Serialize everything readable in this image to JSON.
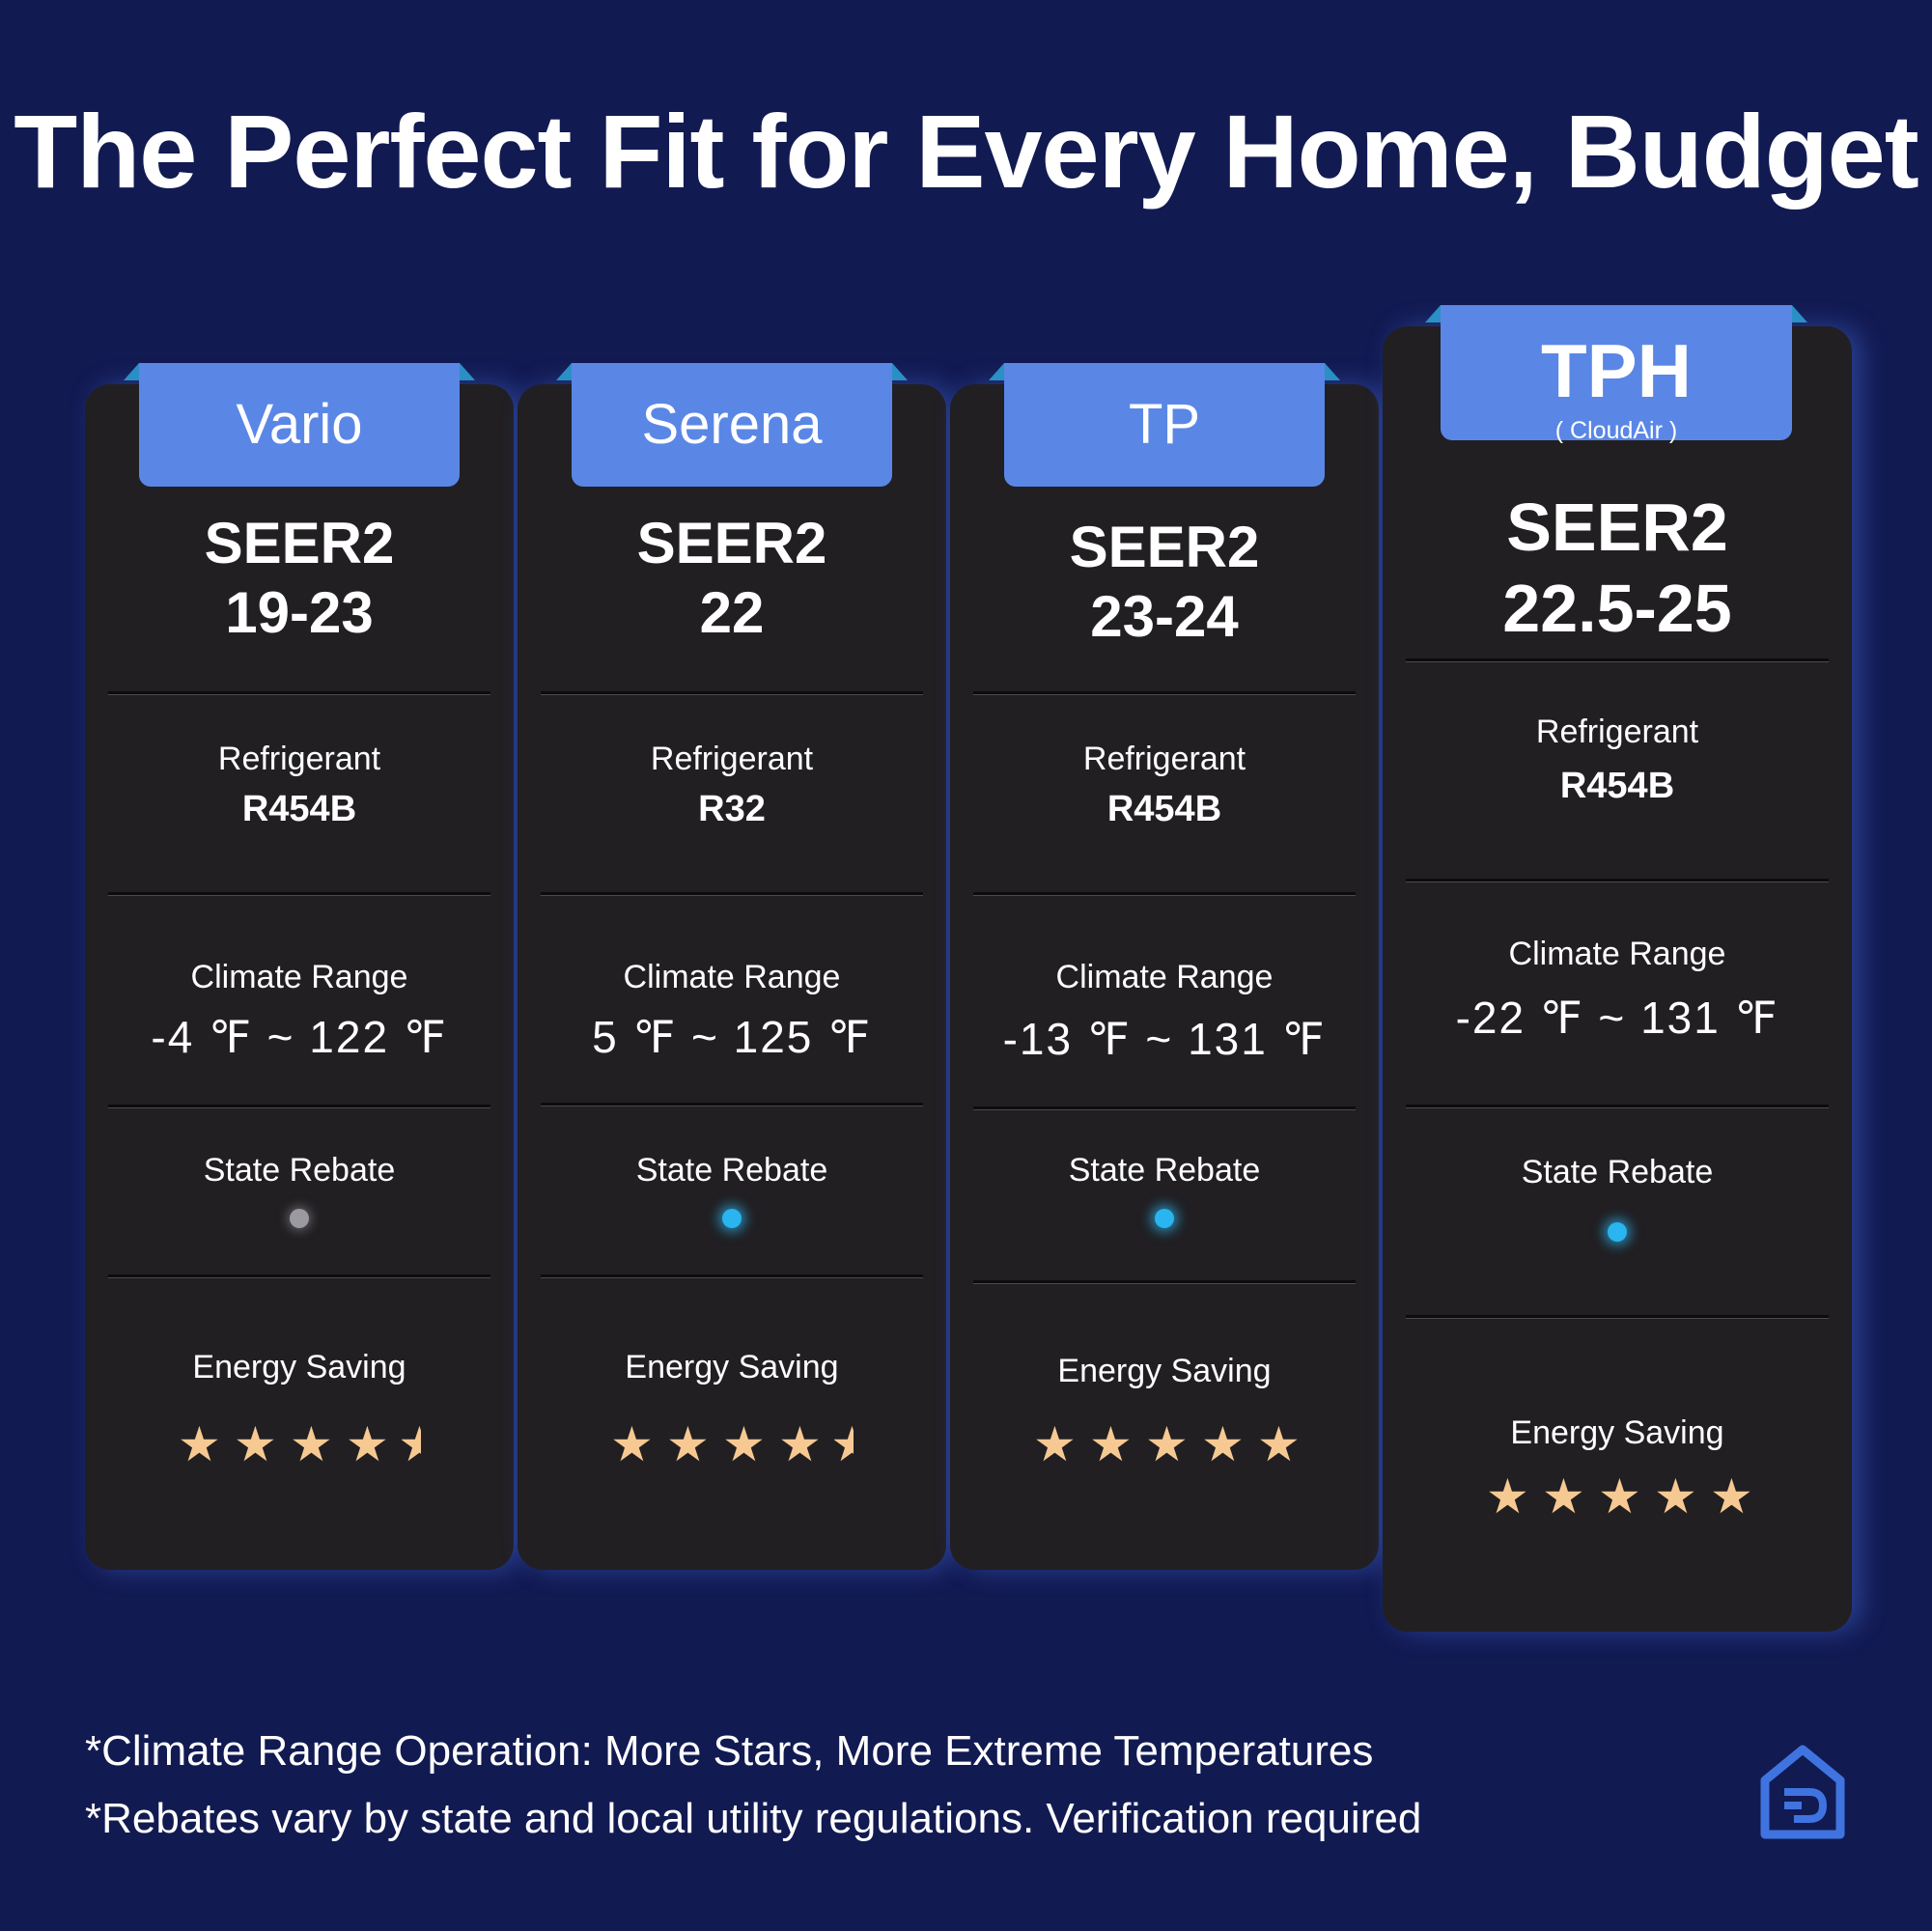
{
  "title": "The Perfect Fit for Every Home, Budget",
  "colors": {
    "background": "#121a52",
    "card": "#211f22",
    "tab": "#5a87e6",
    "star": "#f6c993",
    "rebate_on": "#2ab4f0",
    "rebate_off": "#9a9aa0"
  },
  "cards": [
    {
      "name": "Vario",
      "subname": "",
      "seer_label": "SEER2",
      "seer_value": "19-23",
      "refrigerant_label": "Refrigerant",
      "refrigerant": "R454B",
      "climate_label": "Climate Range",
      "climate_range": "-4 ℉ ~ 122 ℉",
      "rebate_label": "State Rebate",
      "rebate_eligible": false,
      "energy_label": "Energy Saving",
      "energy_stars": 4.5
    },
    {
      "name": "Serena",
      "subname": "",
      "seer_label": "SEER2",
      "seer_value": "22",
      "refrigerant_label": "Refrigerant",
      "refrigerant": "R32",
      "climate_label": "Climate Range",
      "climate_range": "5 ℉ ~ 125 ℉",
      "rebate_label": "State Rebate",
      "rebate_eligible": true,
      "energy_label": "Energy Saving",
      "energy_stars": 4.5
    },
    {
      "name": "TP",
      "subname": "",
      "seer_label": "SEER2",
      "seer_value": "23-24",
      "refrigerant_label": "Refrigerant",
      "refrigerant": "R454B",
      "climate_label": "Climate Range",
      "climate_range": "-13 ℉ ~ 131 ℉",
      "rebate_label": "State Rebate",
      "rebate_eligible": true,
      "energy_label": "Energy Saving",
      "energy_stars": 5
    },
    {
      "name": "TPH",
      "subname": "( CloudAir )",
      "seer_label": "SEER2",
      "seer_value": "22.5-25",
      "refrigerant_label": "Refrigerant",
      "refrigerant": "R454B",
      "climate_label": "Climate Range",
      "climate_range": "-22 ℉ ~ 131 ℉",
      "rebate_label": "State Rebate",
      "rebate_eligible": true,
      "energy_label": "Energy Saving",
      "energy_stars": 5
    }
  ],
  "footnotes": [
    "*Climate Range Operation: More Stars, More Extreme Temperatures",
    "*Rebates vary by state and local utility regulations. Verification required"
  ],
  "logo_icon": "house-logo-icon"
}
